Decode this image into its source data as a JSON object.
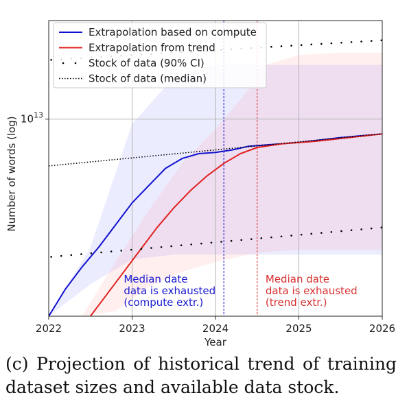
{
  "chart_data": {
    "type": "line",
    "xlabel": "Year",
    "ylabel": "Number of words (log)",
    "xlim": [
      2022,
      2026
    ],
    "log_y": true,
    "ylim_log10": [
      12.2,
      13.4
    ],
    "x_ticks": [
      2022,
      2023,
      2024,
      2025,
      2026
    ],
    "x_tick_labels": [
      "2022",
      "2023",
      "2024",
      "2025",
      "2026"
    ],
    "y_tick_label": "10",
    "y_tick_exponent": "13",
    "y_tick_value_log10": 13,
    "grid": true,
    "legend_position": "top-left",
    "legend": [
      {
        "label": "Extrapolation based on compute",
        "style": "solid",
        "color": "#1010d0"
      },
      {
        "label": "Extrapolation from trend",
        "style": "solid",
        "color": "#e02020"
      },
      {
        "label": "Stock of data (90% CI)",
        "style": "sparse-dots",
        "color": "#000000"
      },
      {
        "label": "Stock of data (median)",
        "style": "dotted",
        "color": "#000000"
      }
    ],
    "series": [
      {
        "name": "Extrapolation based on compute",
        "color": "#1010d0",
        "x": [
          2022.0,
          2022.2,
          2022.4,
          2022.6,
          2022.8,
          2023.0,
          2023.2,
          2023.4,
          2023.6,
          2023.8,
          2024.0,
          2024.2,
          2024.4,
          2024.6,
          2025.0,
          2025.5,
          2026.0
        ],
        "y_log10": [
          12.2,
          12.31,
          12.4,
          12.48,
          12.57,
          12.66,
          12.73,
          12.8,
          12.84,
          12.86,
          12.865,
          12.875,
          12.89,
          12.895,
          12.905,
          12.925,
          12.94
        ]
      },
      {
        "name": "Extrapolation from trend",
        "color": "#e02020",
        "x": [
          2022.5,
          2022.7,
          2022.9,
          2023.1,
          2023.3,
          2023.5,
          2023.7,
          2023.9,
          2024.1,
          2024.3,
          2024.5,
          2024.8,
          2025.2,
          2025.6,
          2026.0
        ],
        "y_log10": [
          12.2,
          12.29,
          12.38,
          12.47,
          12.56,
          12.64,
          12.71,
          12.77,
          12.82,
          12.86,
          12.885,
          12.9,
          12.91,
          12.925,
          12.94
        ]
      },
      {
        "name": "Stock of data (median)",
        "color": "#000000",
        "x": [
          2022.0,
          2026.0
        ],
        "y_log10": [
          12.81,
          12.94
        ]
      },
      {
        "name": "Stock of data (90% CI) upper",
        "color": "#000000",
        "x": [
          2022.0,
          2026.0
        ],
        "y_log10": [
          13.24,
          13.32
        ]
      },
      {
        "name": "Stock of data (90% CI) lower",
        "color": "#000000",
        "x": [
          2022.0,
          2026.0
        ],
        "y_log10": [
          12.44,
          12.56
        ]
      }
    ],
    "bands": [
      {
        "color": "#7b7bff",
        "x": [
          2022.0,
          2022.5,
          2023.0,
          2023.5,
          2024.0,
          2024.5,
          2026.0
        ],
        "upper_log10": [
          12.2,
          12.48,
          12.98,
          13.17,
          13.22,
          13.22,
          13.22
        ],
        "lower_log10": [
          12.2,
          12.33,
          12.43,
          12.45,
          12.45,
          12.45,
          12.45
        ]
      },
      {
        "color": "#ff9090",
        "x": [
          2022.4,
          2022.8,
          2023.2,
          2023.6,
          2024.0,
          2024.4,
          2024.6,
          2025.0,
          2025.5,
          2026.0
        ],
        "upper_log10": [
          12.2,
          12.42,
          12.63,
          12.82,
          12.96,
          13.12,
          13.22,
          13.26,
          13.27,
          13.27
        ],
        "lower_log10": [
          12.2,
          12.22,
          12.32,
          12.38,
          12.42,
          12.45,
          12.46,
          12.47,
          12.47,
          12.47
        ]
      }
    ],
    "vlines": [
      {
        "x": 2024.1,
        "color": "#1010d0"
      },
      {
        "x": 2024.5,
        "color": "#e02020"
      }
    ],
    "annotations": [
      {
        "lines": [
          "Median date",
          "data is exhausted",
          "(compute extr.)"
        ],
        "color": "#1a1ad0",
        "x": 2022.9,
        "y_log10": 12.31
      },
      {
        "lines": [
          "Median date",
          "data is exhausted",
          "(trend extr.)"
        ],
        "color": "#d83030",
        "x": 2024.6,
        "y_log10": 12.31
      }
    ]
  },
  "caption": {
    "line1": "(c) Projection of historical trend of training",
    "line2": "dataset sizes and available data stock."
  }
}
